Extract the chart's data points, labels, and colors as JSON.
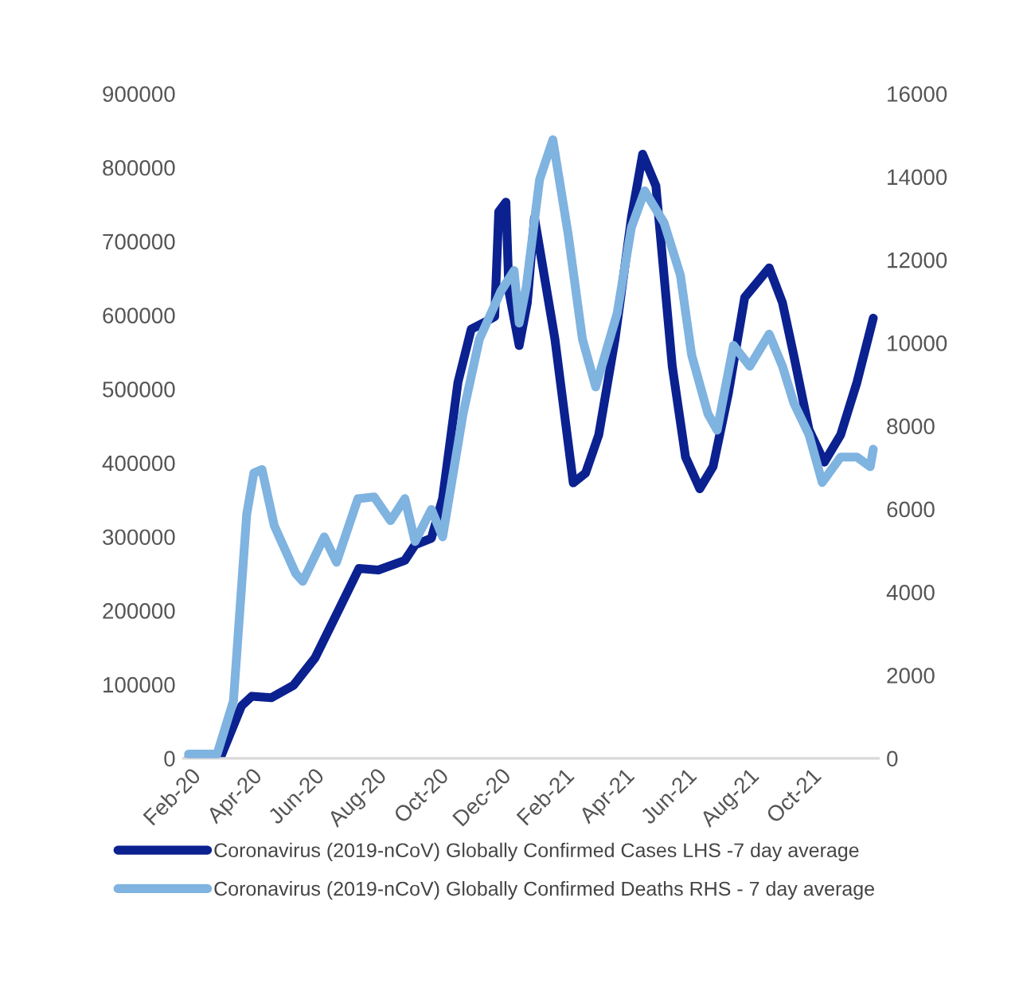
{
  "chart_data": {
    "type": "line",
    "legend": "bottom",
    "line_style": "solid",
    "marker": "none",
    "grid": false,
    "xlim": [
      "2020-01-25",
      "2021-12-06"
    ],
    "xticks": [
      {
        "value": "2020-02-01",
        "label": "Feb-20"
      },
      {
        "value": "2020-04-01",
        "label": "Apr-20"
      },
      {
        "value": "2020-06-01",
        "label": "Jun-20"
      },
      {
        "value": "2020-08-01",
        "label": "Aug-20"
      },
      {
        "value": "2020-10-01",
        "label": "Oct-20"
      },
      {
        "value": "2020-12-01",
        "label": "Dec-20"
      },
      {
        "value": "2021-02-01",
        "label": "Feb-21"
      },
      {
        "value": "2021-04-01",
        "label": "Apr-21"
      },
      {
        "value": "2021-06-01",
        "label": "Jun-21"
      },
      {
        "value": "2021-08-01",
        "label": "Aug-21"
      },
      {
        "value": "2021-10-01",
        "label": "Oct-21"
      }
    ],
    "ylim": [
      0,
      900000
    ],
    "yticks": [
      0,
      100000,
      200000,
      300000,
      400000,
      500000,
      600000,
      700000,
      800000,
      900000
    ],
    "y2lim": [
      0,
      16000
    ],
    "y2ticks": [
      0,
      2000,
      4000,
      6000,
      8000,
      10000,
      12000,
      14000,
      16000
    ],
    "series": [
      {
        "name": "Coronavirus (2019-nCoV) Globally Confirmed Cases LHS -7 day average",
        "color": "#0b2190",
        "axis": "y",
        "x": [
          "2020-01-30",
          "2020-03-01",
          "2020-03-22",
          "2020-04-01",
          "2020-04-20",
          "2020-05-12",
          "2020-06-02",
          "2020-06-22",
          "2020-07-15",
          "2020-08-03",
          "2020-08-29",
          "2020-09-08",
          "2020-09-24",
          "2020-10-05",
          "2020-10-20",
          "2020-11-02",
          "2020-11-16",
          "2020-11-25",
          "2020-11-29",
          "2020-12-06",
          "2020-12-09",
          "2020-12-19",
          "2020-12-27",
          "2021-01-03",
          "2021-01-23",
          "2021-02-10",
          "2021-02-22",
          "2021-03-07",
          "2021-03-23",
          "2021-04-08",
          "2021-04-19",
          "2021-05-02",
          "2021-05-18",
          "2021-05-31",
          "2021-06-14",
          "2021-06-27",
          "2021-07-12",
          "2021-07-28",
          "2021-08-21",
          "2021-09-03",
          "2021-09-14",
          "2021-09-29",
          "2021-10-14",
          "2021-10-30",
          "2021-11-15",
          "2021-12-01"
        ],
        "values": [
          0,
          0,
          71000,
          84000,
          82000,
          99000,
          136000,
          192000,
          257000,
          255000,
          268000,
          289000,
          298000,
          352000,
          509000,
          581000,
          591000,
          598000,
          740000,
          753000,
          632000,
          559000,
          617000,
          732000,
          568000,
          373000,
          386000,
          438000,
          568000,
          732000,
          818000,
          775000,
          531000,
          408000,
          365000,
          395000,
          494000,
          624000,
          664000,
          617000,
          546000,
          445000,
          401000,
          438000,
          509000,
          596000
        ]
      },
      {
        "name": "Coronavirus (2019-nCoV) Globally Confirmed Deaths RHS - 7 day average",
        "color": "#7fb3e0",
        "axis": "y2",
        "x": [
          "2020-01-30",
          "2020-02-27",
          "2020-03-14",
          "2020-03-27",
          "2020-04-03",
          "2020-04-11",
          "2020-04-23",
          "2020-05-14",
          "2020-05-21",
          "2020-06-11",
          "2020-06-23",
          "2020-07-14",
          "2020-07-30",
          "2020-08-15",
          "2020-08-29",
          "2020-09-08",
          "2020-09-24",
          "2020-10-05",
          "2020-10-25",
          "2020-11-10",
          "2020-12-01",
          "2020-12-14",
          "2020-12-19",
          "2020-12-26",
          "2021-01-08",
          "2021-01-21",
          "2021-02-05",
          "2021-02-19",
          "2021-03-04",
          "2021-03-25",
          "2021-04-08",
          "2021-04-21",
          "2021-05-10",
          "2021-05-26",
          "2021-06-06",
          "2021-06-22",
          "2021-07-01",
          "2021-07-17",
          "2021-08-02",
          "2021-08-21",
          "2021-09-03",
          "2021-09-14",
          "2021-09-29",
          "2021-10-12",
          "2021-10-30",
          "2021-11-15",
          "2021-11-28",
          "2021-12-01"
        ],
        "values": [
          100,
          100,
          1380,
          5870,
          6870,
          6950,
          5600,
          4450,
          4260,
          5330,
          4720,
          6250,
          6290,
          5720,
          6250,
          5220,
          5990,
          5330,
          8290,
          10090,
          11240,
          11740,
          10480,
          11360,
          13930,
          14890,
          12620,
          10090,
          8940,
          10710,
          12780,
          13660,
          12890,
          11630,
          9710,
          8290,
          7900,
          9940,
          9440,
          10210,
          9440,
          8560,
          7790,
          6640,
          7250,
          7250,
          7020,
          7440
        ]
      }
    ]
  }
}
